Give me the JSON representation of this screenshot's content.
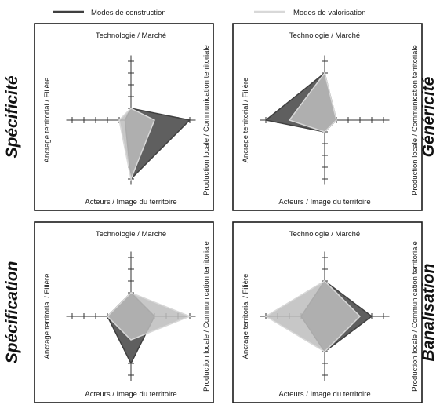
{
  "legend": {
    "construction": {
      "label": "Modes de construction",
      "color": "#404040",
      "fill": "#5f5f5f"
    },
    "valorisation": {
      "label": "Modes de valorisation",
      "color": "#d8d8d8",
      "fill": "#bdbdbd"
    }
  },
  "axes": {
    "top": "Technologie / Marché",
    "bottom": "Acteurs / Image du territoire",
    "left": "Ancrage territorial / Filière",
    "right": "Production locale / Communication territoriale"
  },
  "scale_max": 5,
  "panels": [
    {
      "key": "specificite",
      "label": "Spécificité",
      "construction": {
        "top": 1,
        "right": 5,
        "bottom": 5,
        "left": 0.5
      },
      "valorisation": {
        "top": 1,
        "right": 2,
        "bottom": 5,
        "left": 1
      }
    },
    {
      "key": "genericite",
      "label": "Généricité",
      "construction": {
        "top": 4,
        "right": 1,
        "bottom": 1,
        "left": 5
      },
      "valorisation": {
        "top": 4,
        "right": 1,
        "bottom": 1,
        "left": 3
      }
    },
    {
      "key": "specification",
      "label": "Spécification",
      "construction": {
        "top": 2,
        "right": 2,
        "bottom": 4,
        "left": 2
      },
      "valorisation": {
        "top": 2,
        "right": 5,
        "bottom": 2,
        "left": 2
      }
    },
    {
      "key": "banalisation",
      "label": "Banalisation",
      "construction": {
        "top": 3,
        "right": 4,
        "bottom": 3,
        "left": 2
      },
      "valorisation": {
        "top": 3,
        "right": 3,
        "bottom": 3,
        "left": 5
      }
    }
  ]
}
